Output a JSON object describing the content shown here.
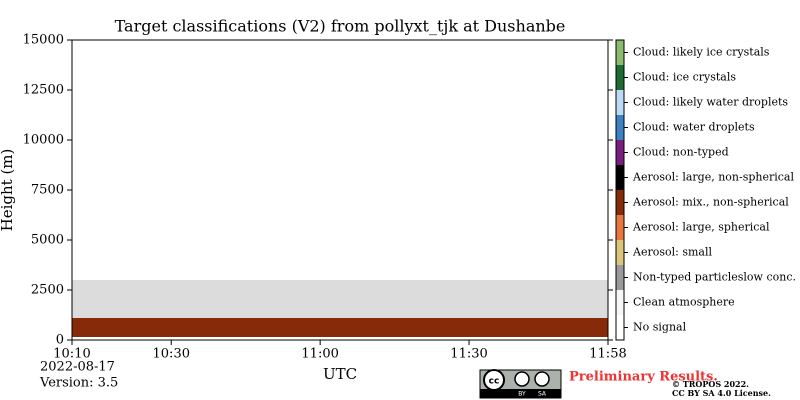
{
  "chart_data": {
    "type": "classification",
    "title": "Target classifications (V2) from pollyxt_tjk at Dushanbe",
    "x_label": "UTC",
    "y_label": "Height (m)",
    "xlim": [
      610,
      718
    ],
    "xticks": [
      {
        "value": 610,
        "label": "10:10"
      },
      {
        "value": 630,
        "label": "10:30"
      },
      {
        "value": 660,
        "label": "11:00"
      },
      {
        "value": 690,
        "label": "11:30"
      },
      {
        "value": 718,
        "label": "11:58"
      }
    ],
    "ylim": [
      0,
      15000
    ],
    "yticks": [
      0,
      2500,
      5000,
      7500,
      10000,
      12500,
      15000
    ],
    "classes": [
      {
        "name": "No signal",
        "color": "#ffffff"
      },
      {
        "name": "Clean atmosphere",
        "color": "#f7f7f7"
      },
      {
        "name": "Non-typed particleslow conc.",
        "color": "#9a9a9a"
      },
      {
        "name": "Aerosol: small",
        "color": "#dcc47a"
      },
      {
        "name": "Aerosol: large, spherical",
        "color": "#e7773f"
      },
      {
        "name": "Aerosol: mix., non-spherical",
        "color": "#862a0a"
      },
      {
        "name": "Aerosol: large, non-spherical",
        "color": "#000000"
      },
      {
        "name": "Cloud: non-typed",
        "color": "#7a1d7f"
      },
      {
        "name": "Cloud: water droplets",
        "color": "#3c82c2"
      },
      {
        "name": "Cloud: likely water droplets",
        "color": "#bcdaf5"
      },
      {
        "name": "Cloud: ice crystals",
        "color": "#1c6b33"
      },
      {
        "name": "Cloud: likely ice crystals",
        "color": "#8bbb6c"
      }
    ],
    "layers": [
      {
        "class": 2,
        "bottom": 1000,
        "top": 3000
      },
      {
        "class": 5,
        "bottom": 150,
        "top": 1100
      }
    ]
  },
  "footer": {
    "date": "2022-08-17",
    "version": "Version: 3.5",
    "notice": "Preliminary Results.",
    "badge": [
      "cc",
      "BY",
      "SA"
    ],
    "copyright": "© TROPOS 2022.",
    "license": "CC BY SA 4.0 License."
  }
}
